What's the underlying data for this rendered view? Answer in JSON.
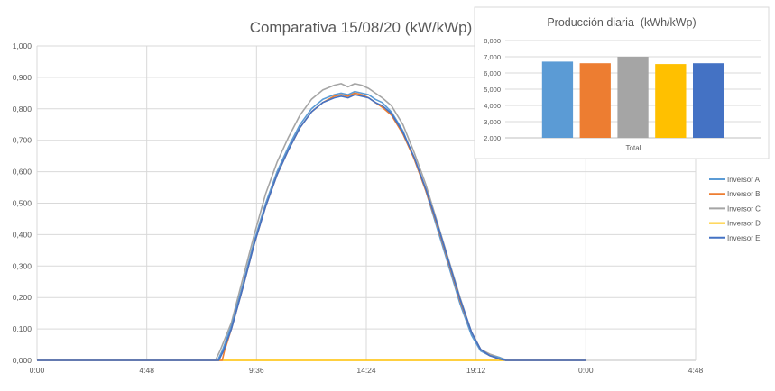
{
  "colors": {
    "background": "#ffffff",
    "gridline": "#d9d9d9",
    "axis_text": "#595959",
    "title_text": "#595959",
    "inset_border": "#d9d9d9"
  },
  "chart_data": [
    {
      "type": "line",
      "title": "Comparativa 15/08/20 (kW/kWp)",
      "xlabel": "",
      "ylabel": "",
      "x_unit": "hours",
      "x_tick_labels": [
        "0:00",
        "4:48",
        "9:36",
        "14:24",
        "19:12",
        "0:00",
        "4:48"
      ],
      "x_ticks": [
        0,
        4.8,
        9.6,
        14.4,
        19.2,
        24,
        28.8
      ],
      "xlim": [
        0,
        28.8
      ],
      "y_tick_labels": [
        "0,000",
        "0,100",
        "0,200",
        "0,300",
        "0,400",
        "0,500",
        "0,600",
        "0,700",
        "0,800",
        "0,900",
        "1,000"
      ],
      "ylim": [
        0,
        1.0
      ],
      "y_step": 0.1,
      "grid": true,
      "legend_position": "right",
      "series": [
        {
          "name": "Inversor A",
          "color": "#5b9bd5",
          "x": [
            0,
            7.9,
            8.1,
            8.5,
            9.0,
            9.5,
            10.0,
            10.5,
            11.0,
            11.5,
            12.0,
            12.5,
            13.0,
            13.3,
            13.6,
            13.9,
            14.2,
            14.5,
            14.8,
            15.1,
            15.5,
            16.0,
            16.5,
            17.0,
            17.5,
            18.0,
            18.5,
            19.0,
            19.4,
            19.8,
            20.2,
            20.5,
            21.0,
            24
          ],
          "y": [
            0,
            0,
            0.03,
            0.11,
            0.24,
            0.38,
            0.5,
            0.6,
            0.68,
            0.75,
            0.8,
            0.83,
            0.845,
            0.85,
            0.845,
            0.855,
            0.85,
            0.845,
            0.83,
            0.82,
            0.79,
            0.73,
            0.64,
            0.54,
            0.42,
            0.3,
            0.18,
            0.08,
            0.03,
            0.015,
            0.01,
            0,
            0,
            0
          ]
        },
        {
          "name": "Inversor B",
          "color": "#ed7d31",
          "x": [
            0,
            8.1,
            8.2,
            8.5,
            9.0,
            9.5,
            10.0,
            10.5,
            11.0,
            11.5,
            12.0,
            12.5,
            13.0,
            13.3,
            13.6,
            13.9,
            14.2,
            14.5,
            14.8,
            15.1,
            15.5,
            16.0,
            16.5,
            17.0,
            17.5,
            18.0,
            18.5,
            19.0,
            19.4,
            19.8,
            20.2,
            20.5,
            21.0,
            24
          ],
          "y": [
            0,
            0,
            0.03,
            0.1,
            0.23,
            0.37,
            0.49,
            0.59,
            0.67,
            0.74,
            0.79,
            0.82,
            0.84,
            0.845,
            0.84,
            0.85,
            0.845,
            0.835,
            0.82,
            0.805,
            0.78,
            0.72,
            0.64,
            0.54,
            0.43,
            0.31,
            0.19,
            0.09,
            0.035,
            0.015,
            0.005,
            0,
            0,
            0
          ]
        },
        {
          "name": "Inversor C",
          "color": "#a5a5a5",
          "x": [
            0,
            7.8,
            8.0,
            8.5,
            9.0,
            9.5,
            10.0,
            10.5,
            11.0,
            11.5,
            12.0,
            12.5,
            13.0,
            13.3,
            13.6,
            13.9,
            14.2,
            14.5,
            14.8,
            15.1,
            15.5,
            16.0,
            16.5,
            17.0,
            17.5,
            18.0,
            18.5,
            19.0,
            19.4,
            19.8,
            20.2,
            20.6,
            21.0,
            24
          ],
          "y": [
            0,
            0,
            0.03,
            0.12,
            0.26,
            0.4,
            0.53,
            0.63,
            0.71,
            0.78,
            0.83,
            0.86,
            0.875,
            0.88,
            0.87,
            0.88,
            0.875,
            0.865,
            0.85,
            0.835,
            0.81,
            0.75,
            0.66,
            0.56,
            0.44,
            0.32,
            0.2,
            0.09,
            0.035,
            0.02,
            0.01,
            0,
            0,
            0
          ]
        },
        {
          "name": "Inversor D",
          "color": "#ffc000",
          "x": [
            0,
            24
          ],
          "y": [
            0,
            0
          ]
        },
        {
          "name": "Inversor E",
          "color": "#4472c4",
          "x": [
            0,
            7.95,
            8.15,
            8.5,
            9.0,
            9.5,
            10.0,
            10.5,
            11.0,
            11.5,
            12.0,
            12.5,
            13.0,
            13.3,
            13.6,
            13.9,
            14.2,
            14.5,
            14.8,
            15.1,
            15.5,
            16.0,
            16.5,
            17.0,
            17.5,
            18.0,
            18.5,
            19.0,
            19.4,
            19.8,
            20.2,
            20.5,
            21.0,
            24
          ],
          "y": [
            0,
            0,
            0.03,
            0.1,
            0.23,
            0.37,
            0.49,
            0.59,
            0.67,
            0.74,
            0.79,
            0.82,
            0.835,
            0.84,
            0.835,
            0.845,
            0.84,
            0.835,
            0.82,
            0.81,
            0.785,
            0.725,
            0.645,
            0.545,
            0.435,
            0.315,
            0.195,
            0.09,
            0.035,
            0.015,
            0.005,
            0,
            0,
            0
          ]
        }
      ]
    },
    {
      "type": "bar",
      "title": "Producción diaria  (kWh/kWp)",
      "categories": [
        "Total"
      ],
      "xlabel": "",
      "ylabel": "",
      "y_tick_labels": [
        "2,000",
        "3,000",
        "4,000",
        "5,000",
        "6,000",
        "7,000",
        "8,000"
      ],
      "ylim": [
        2.0,
        8.0
      ],
      "y_step": 1.0,
      "grid": true,
      "series": [
        {
          "name": "Inversor A",
          "color": "#5b9bd5",
          "values": [
            6.7
          ]
        },
        {
          "name": "Inversor B",
          "color": "#ed7d31",
          "values": [
            6.6
          ]
        },
        {
          "name": "Inversor C",
          "color": "#a5a5a5",
          "values": [
            7.0
          ]
        },
        {
          "name": "Inversor D",
          "color": "#ffc000",
          "values": [
            6.55
          ]
        },
        {
          "name": "Inversor E",
          "color": "#4472c4",
          "values": [
            6.6
          ]
        }
      ]
    }
  ]
}
